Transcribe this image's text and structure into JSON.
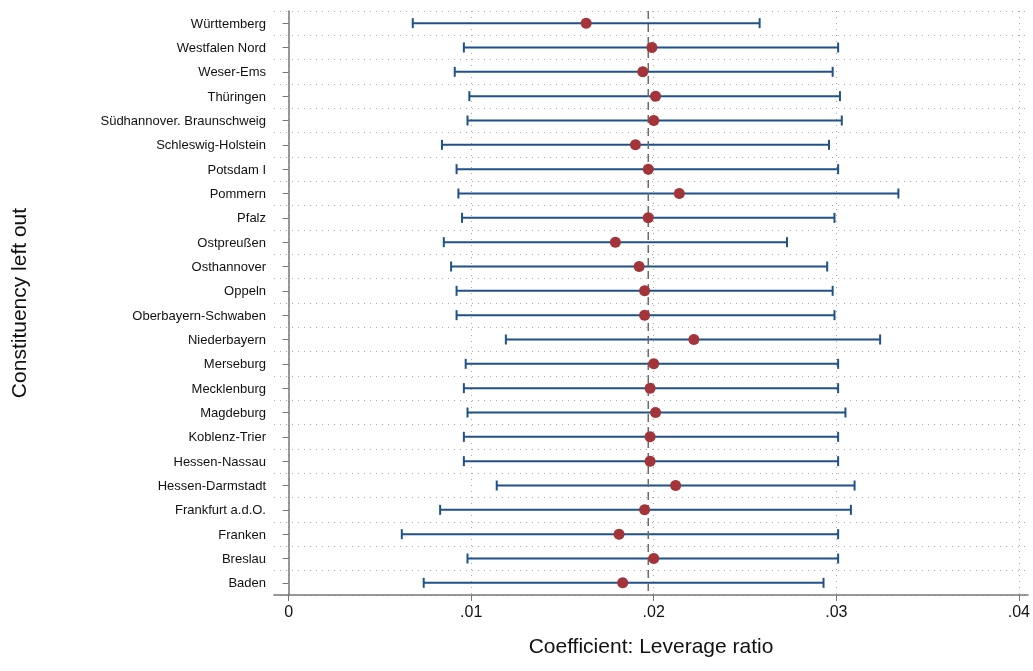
{
  "chart_data": {
    "type": "scatter",
    "orientation": "horizontal",
    "xlabel": "Coefficient: Leverage ratio",
    "ylabel": "Constituency left out",
    "categories": [
      "Württemberg",
      "Westfalen Nord",
      "Weser-Ems",
      "Thüringen",
      "Südhannover. Braunschweig",
      "Schleswig-Holstein",
      "Potsdam I",
      "Pommern",
      "Pfalz",
      "Ostpreußen",
      "Osthannover",
      "Oppeln",
      "Oberbayern-Schwaben",
      "Niederbayern",
      "Merseburg",
      "Mecklenburg",
      "Magdeburg",
      "Koblenz-Trier",
      "Hessen-Nassau",
      "Hessen-Darmstadt",
      "Frankfurt a.d.O.",
      "Franken",
      "Breslau",
      "Baden"
    ],
    "values": [
      0.0163,
      0.0199,
      0.0194,
      0.0201,
      0.02,
      0.019,
      0.0197,
      0.0214,
      0.0197,
      0.0179,
      0.0192,
      0.0195,
      0.0195,
      0.0222,
      0.02,
      0.0198,
      0.0201,
      0.0198,
      0.0198,
      0.0212,
      0.0195,
      0.0181,
      0.02,
      0.0183
    ],
    "errors": [
      [
        0.0068,
        0.0258
      ],
      [
        0.0096,
        0.0301
      ],
      [
        0.0091,
        0.0298
      ],
      [
        0.0099,
        0.0302
      ],
      [
        0.0098,
        0.0303
      ],
      [
        0.0084,
        0.0296
      ],
      [
        0.0092,
        0.0301
      ],
      [
        0.0093,
        0.0334
      ],
      [
        0.0095,
        0.0299
      ],
      [
        0.0085,
        0.0273
      ],
      [
        0.0089,
        0.0295
      ],
      [
        0.0092,
        0.0298
      ],
      [
        0.0092,
        0.0299
      ],
      [
        0.0119,
        0.0324
      ],
      [
        0.0097,
        0.0301
      ],
      [
        0.0096,
        0.0301
      ],
      [
        0.0098,
        0.0305
      ],
      [
        0.0096,
        0.0301
      ],
      [
        0.0096,
        0.0301
      ],
      [
        0.0114,
        0.031
      ],
      [
        0.0083,
        0.0308
      ],
      [
        0.0062,
        0.0301
      ],
      [
        0.0098,
        0.0301
      ],
      [
        0.0074,
        0.0293
      ]
    ],
    "color": "#a3343a",
    "marker": "circle",
    "xlim": [
      -0.0008,
      0.0405
    ],
    "xticks": [
      {
        "value": 0,
        "label": "0"
      },
      {
        "value": 0.01,
        "label": ".01"
      },
      {
        "value": 0.02,
        "label": ".02"
      },
      {
        "value": 0.03,
        "label": ".03"
      },
      {
        "value": 0.04,
        "label": ".04"
      }
    ],
    "ref_lines": [
      {
        "axis": "x",
        "value": 0.0197,
        "line_style": "dashed",
        "color": "#6b6b6b"
      }
    ],
    "grid": true
  }
}
